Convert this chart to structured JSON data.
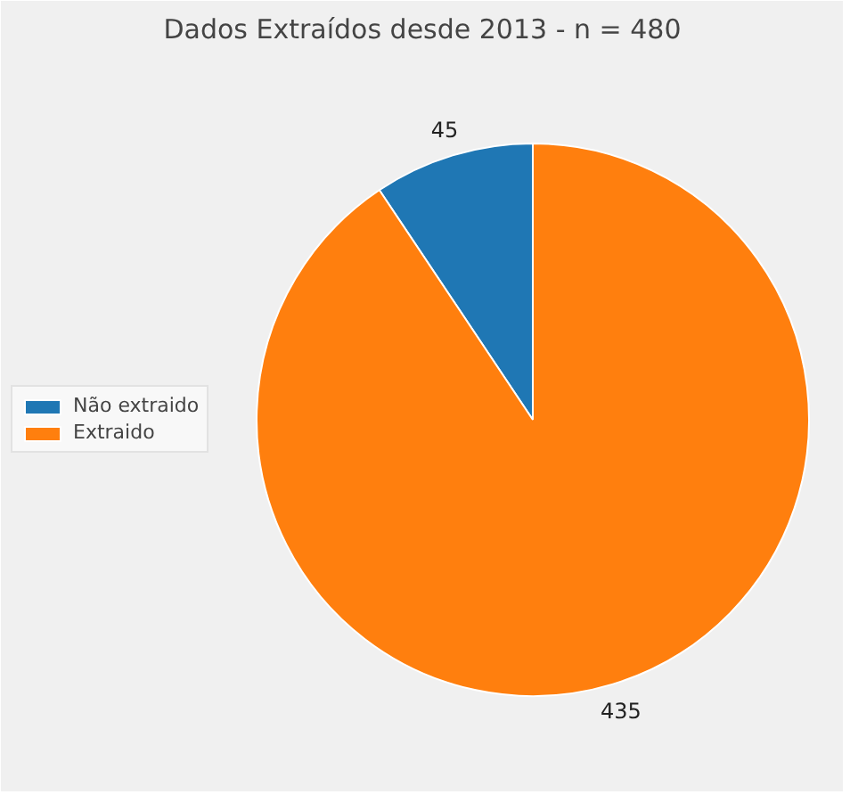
{
  "chart_data": {
    "type": "pie",
    "title": "Dados Extraídos desde 2013 - n = 480",
    "categories": [
      "Não extraido",
      "Extraido"
    ],
    "values": [
      45,
      435
    ],
    "colors": [
      "#1f77b4",
      "#ff7f0e"
    ],
    "data_labels": true,
    "legend": "left"
  }
}
